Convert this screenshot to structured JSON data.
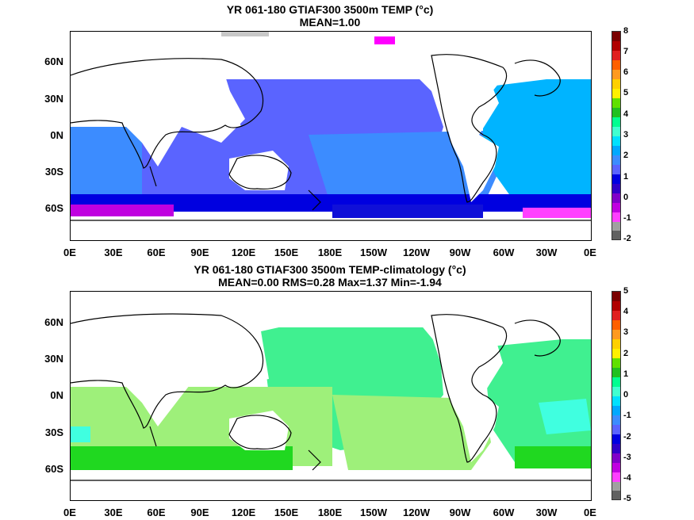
{
  "panels": [
    {
      "title1": "YR 061-180 GTIAF300 3500m TEMP (°c)",
      "title2": "MEAN=1.00",
      "colorbar": {
        "ticks": [
          "8",
          "7",
          "6",
          "5",
          "4",
          "3",
          "2",
          "1",
          "0",
          "-1",
          "-2"
        ],
        "colors": [
          "#7a0000",
          "#b00000",
          "#e02020",
          "#ff6000",
          "#ff9a20",
          "#ffd000",
          "#fff000",
          "#60e000",
          "#20c020",
          "#00ff90",
          "#40ffd0",
          "#00e0ff",
          "#00a8ff",
          "#3c8cff",
          "#5a64ff",
          "#0000e0",
          "#3000c8",
          "#8000c8",
          "#c000e0",
          "#ff40ff",
          "#a0a0a0",
          "#606060"
        ]
      }
    },
    {
      "title1": "YR 061-180 GTIAF300 3500m TEMP-climatology (°c)",
      "title2": "MEAN=0.00   RMS=0.28   Max=1.37   Min=-1.94",
      "colorbar": {
        "ticks": [
          "5",
          "4",
          "3",
          "2",
          "1",
          "0",
          "-1",
          "-2",
          "-3",
          "-4",
          "-5"
        ],
        "colors": [
          "#7a0000",
          "#b00000",
          "#e02020",
          "#ff6000",
          "#ff9a20",
          "#ffd000",
          "#fff000",
          "#60e000",
          "#20c020",
          "#00ff90",
          "#40ffd0",
          "#00e0ff",
          "#00a8ff",
          "#3c8cff",
          "#5a64ff",
          "#0000e0",
          "#3000c8",
          "#8000c8",
          "#c000e0",
          "#ff40ff",
          "#a0a0a0",
          "#606060"
        ]
      }
    }
  ],
  "lat_labels": [
    "60N",
    "30N",
    "0N",
    "30S",
    "60S"
  ],
  "lon_labels": [
    "0E",
    "30E",
    "60E",
    "90E",
    "120E",
    "150E",
    "180E",
    "150W",
    "120W",
    "90W",
    "60W",
    "30W",
    "0E"
  ]
}
